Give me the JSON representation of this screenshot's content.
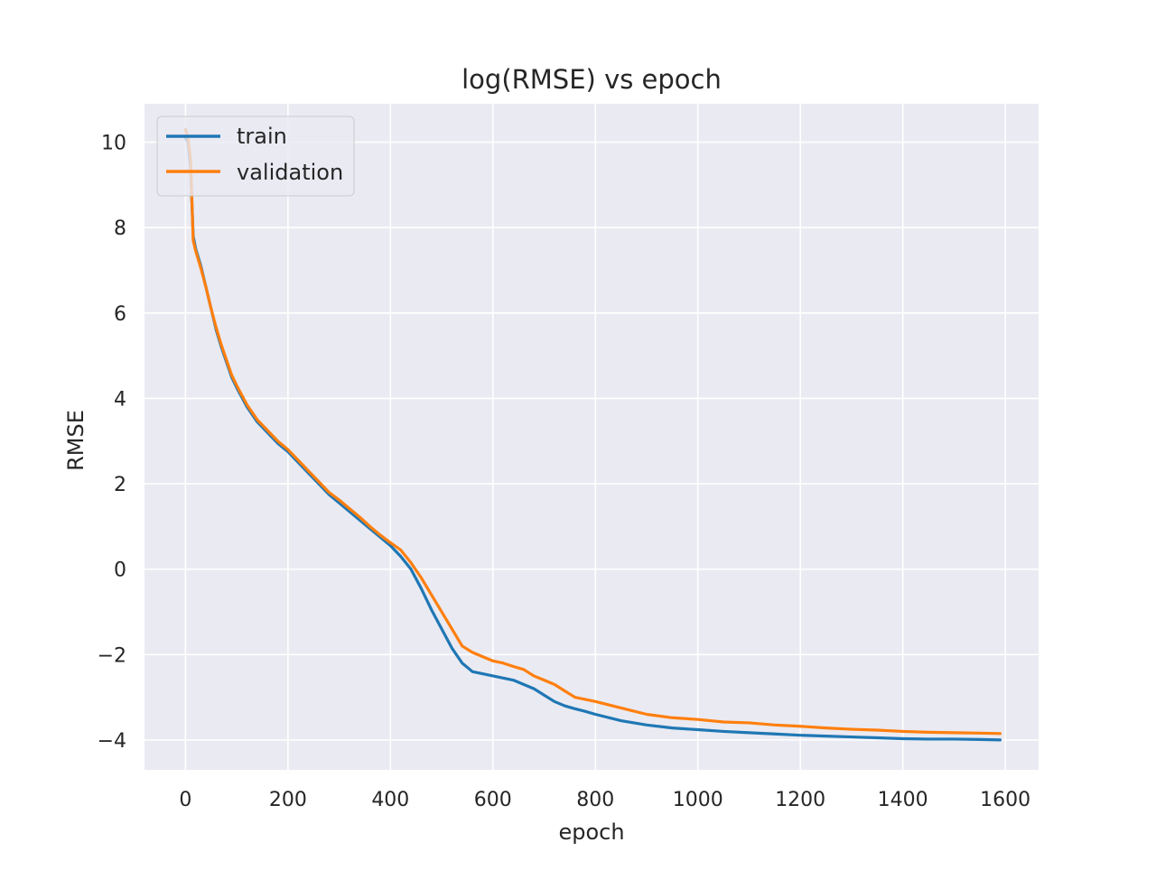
{
  "chart_data": {
    "type": "line",
    "title": "log(RMSE) vs epoch",
    "xlabel": "epoch",
    "ylabel": "RMSE",
    "xlim": [
      -80,
      1665
    ],
    "ylim": [
      -4.7,
      10.9
    ],
    "xticks": [
      0,
      200,
      400,
      600,
      800,
      1000,
      1200,
      1400,
      1600
    ],
    "yticks": [
      -4,
      -2,
      0,
      2,
      4,
      6,
      8,
      10
    ],
    "grid": true,
    "legend_position": "upper-left",
    "colors": {
      "background": "#eaeaf2",
      "grid": "#ffffff",
      "train": "#1f77b4",
      "validation": "#ff7f0e"
    },
    "series": [
      {
        "name": "train",
        "color": "#1f77b4",
        "x": [
          0,
          5,
          10,
          15,
          20,
          30,
          40,
          50,
          60,
          70,
          80,
          90,
          100,
          120,
          140,
          160,
          180,
          200,
          220,
          240,
          260,
          280,
          300,
          320,
          340,
          360,
          380,
          400,
          420,
          440,
          460,
          480,
          500,
          520,
          540,
          560,
          580,
          600,
          620,
          640,
          660,
          680,
          700,
          720,
          740,
          760,
          780,
          800,
          850,
          900,
          950,
          1000,
          1050,
          1100,
          1150,
          1200,
          1250,
          1300,
          1350,
          1400,
          1450,
          1500,
          1550,
          1590
        ],
        "y": [
          10.1,
          10.0,
          9.4,
          7.8,
          7.5,
          7.1,
          6.6,
          6.1,
          5.6,
          5.2,
          4.85,
          4.5,
          4.25,
          3.8,
          3.45,
          3.2,
          2.95,
          2.75,
          2.5,
          2.25,
          2.0,
          1.75,
          1.55,
          1.35,
          1.15,
          0.95,
          0.75,
          0.55,
          0.3,
          0.0,
          -0.45,
          -0.95,
          -1.4,
          -1.85,
          -2.2,
          -2.4,
          -2.45,
          -2.5,
          -2.55,
          -2.6,
          -2.7,
          -2.8,
          -2.95,
          -3.1,
          -3.2,
          -3.27,
          -3.33,
          -3.4,
          -3.55,
          -3.65,
          -3.72,
          -3.76,
          -3.8,
          -3.83,
          -3.86,
          -3.89,
          -3.91,
          -3.93,
          -3.95,
          -3.97,
          -3.98,
          -3.98,
          -3.99,
          -4.0
        ]
      },
      {
        "name": "validation",
        "color": "#ff7f0e",
        "x": [
          0,
          5,
          10,
          15,
          20,
          30,
          40,
          50,
          60,
          70,
          80,
          90,
          100,
          120,
          140,
          160,
          180,
          200,
          220,
          240,
          260,
          280,
          300,
          320,
          340,
          360,
          380,
          400,
          420,
          440,
          460,
          480,
          500,
          520,
          540,
          560,
          580,
          600,
          620,
          640,
          660,
          680,
          700,
          720,
          740,
          760,
          780,
          800,
          850,
          900,
          950,
          1000,
          1050,
          1100,
          1150,
          1200,
          1250,
          1300,
          1350,
          1400,
          1450,
          1500,
          1550,
          1590
        ],
        "y": [
          10.3,
          10.1,
          9.6,
          7.7,
          7.45,
          7.05,
          6.6,
          6.1,
          5.65,
          5.25,
          4.9,
          4.55,
          4.3,
          3.85,
          3.5,
          3.25,
          3.0,
          2.8,
          2.55,
          2.3,
          2.05,
          1.8,
          1.62,
          1.42,
          1.22,
          1.0,
          0.8,
          0.62,
          0.45,
          0.15,
          -0.2,
          -0.6,
          -1.0,
          -1.4,
          -1.8,
          -1.95,
          -2.05,
          -2.15,
          -2.2,
          -2.28,
          -2.35,
          -2.5,
          -2.6,
          -2.7,
          -2.85,
          -3.0,
          -3.05,
          -3.1,
          -3.25,
          -3.4,
          -3.48,
          -3.52,
          -3.58,
          -3.6,
          -3.65,
          -3.68,
          -3.72,
          -3.75,
          -3.77,
          -3.8,
          -3.82,
          -3.83,
          -3.84,
          -3.85
        ]
      }
    ]
  }
}
